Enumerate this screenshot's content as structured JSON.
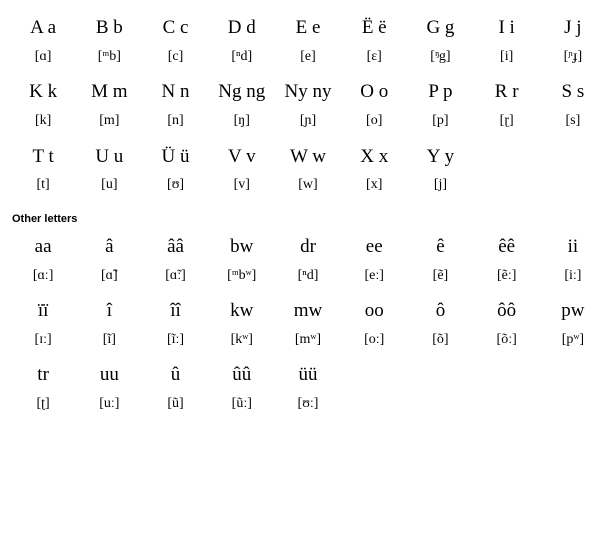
{
  "main": {
    "rows": [
      {
        "letters": [
          "A a",
          "B b",
          "C c",
          "D d",
          "E e",
          "Ë ë",
          "G g",
          "I i",
          "J j"
        ],
        "ipas": [
          "[ɑ]",
          "[ᵐb]",
          "[c]",
          "[ⁿd]",
          "[e]",
          "[ɛ]",
          "[ᵑg]",
          "[i]",
          "[ᶮɟ]"
        ]
      },
      {
        "letters": [
          "K k",
          "M m",
          "N n",
          "Ng ng",
          "Ny ny",
          "O o",
          "P p",
          "R r",
          "S s"
        ],
        "ipas": [
          "[k]",
          "[m]",
          "[n]",
          "[ŋ]",
          "[ɲ]",
          "[o]",
          "[p]",
          "[ɽ]",
          "[s]"
        ]
      },
      {
        "letters": [
          "T t",
          "U u",
          "Ü ü",
          "V v",
          "W w",
          "X x",
          "Y y",
          "",
          ""
        ],
        "ipas": [
          "[t]",
          "[u]",
          "[ʊ]",
          "[v]",
          "[w]",
          "[x]",
          "[j]",
          "",
          ""
        ]
      }
    ]
  },
  "other_label": "Other letters",
  "other": {
    "rows": [
      {
        "letters": [
          "aa",
          "â",
          "ââ",
          "bw",
          "dr",
          "ee",
          "ê",
          "êê",
          "ii"
        ],
        "ipas": [
          "[ɑː]",
          "[ɑ̃]",
          "[ɑ̃ː]",
          "[ᵐbʷ]",
          "[ⁿd]",
          "[eː]",
          "[ẽ]",
          "[ẽː]",
          "[iː]"
        ]
      },
      {
        "letters": [
          "ïï",
          "î",
          "îî",
          "kw",
          "mw",
          "oo",
          "ô",
          "ôô",
          "pw"
        ],
        "ipas": [
          "[ɪː]",
          "[ĩ]",
          "[ĩː]",
          "[kʷ]",
          "[mʷ]",
          "[oː]",
          "[õ]",
          "[õː]",
          "[pʷ]"
        ]
      },
      {
        "letters": [
          "tr",
          "uu",
          "û",
          "ûû",
          "üü",
          "",
          "",
          "",
          ""
        ],
        "ipas": [
          "[ʈ]",
          "[uː]",
          "[ũ]",
          "[ũː]",
          "[ʊː]",
          "",
          "",
          "",
          ""
        ]
      }
    ]
  }
}
